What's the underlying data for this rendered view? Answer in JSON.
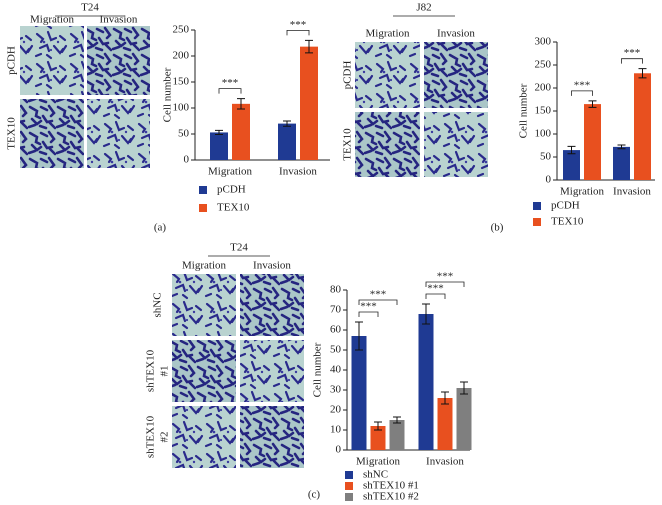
{
  "panels": [
    {
      "label": "(a)",
      "cell_line": "T24",
      "columns": [
        "Migration",
        "Invasion"
      ],
      "rows": [
        [
          "pCDH"
        ],
        [
          "TEX10"
        ]
      ]
    },
    {
      "label": "(b)",
      "cell_line": "J82",
      "columns": [
        "Migration",
        "Invasion"
      ],
      "rows": [
        [
          "pCDH"
        ],
        [
          "TEX10"
        ]
      ]
    },
    {
      "label": "(c)",
      "cell_line": "T24",
      "columns": [
        "Migration",
        "Invasion"
      ],
      "rows": [
        [
          "shNC"
        ],
        [
          "shTEX10",
          "#1"
        ],
        [
          "shTEX10",
          "#2"
        ]
      ]
    }
  ],
  "chart_data": [
    {
      "type": "bar",
      "ylabel": "Cell number",
      "categories": [
        "Migration",
        "Invasion"
      ],
      "series": [
        {
          "name": "pCDH",
          "color": "#1f3a93",
          "values": [
            53,
            70
          ],
          "errors": [
            4,
            5
          ]
        },
        {
          "name": "TEX10",
          "color": "#e8501f",
          "values": [
            108,
            218
          ],
          "errors": [
            10,
            12
          ]
        }
      ],
      "ylim": [
        0,
        250
      ],
      "yticks": [
        0,
        50,
        100,
        150,
        200,
        250
      ],
      "annotations": [
        "***",
        "***"
      ]
    },
    {
      "type": "bar",
      "ylabel": "Cell number",
      "categories": [
        "Migration",
        "Invasion"
      ],
      "series": [
        {
          "name": "pCDH",
          "color": "#1f3a93",
          "values": [
            65,
            72
          ],
          "errors": [
            8,
            4
          ]
        },
        {
          "name": "TEX10",
          "color": "#e8501f",
          "values": [
            165,
            232
          ],
          "errors": [
            7,
            10
          ]
        }
      ],
      "ylim": [
        0,
        300
      ],
      "yticks": [
        0,
        50,
        100,
        150,
        200,
        250,
        300
      ],
      "annotations": [
        "***",
        "***"
      ]
    },
    {
      "type": "bar",
      "ylabel": "Cell number",
      "categories": [
        "Migration",
        "Invasion"
      ],
      "series": [
        {
          "name": "shNC",
          "color": "#1f3a93",
          "values": [
            57,
            68
          ],
          "errors": [
            7,
            5
          ]
        },
        {
          "name": "shTEX10 #1",
          "color": "#e8501f",
          "values": [
            12,
            26
          ],
          "errors": [
            2,
            3
          ]
        },
        {
          "name": "shTEX10 #2",
          "color": "#7f7f7f",
          "values": [
            15,
            31
          ],
          "errors": [
            1.5,
            3
          ]
        }
      ],
      "ylim": [
        0,
        80
      ],
      "yticks": [
        0,
        10,
        20,
        30,
        40,
        50,
        60,
        70,
        80
      ],
      "annotations": [
        "***",
        "***",
        "***",
        "***"
      ]
    }
  ]
}
